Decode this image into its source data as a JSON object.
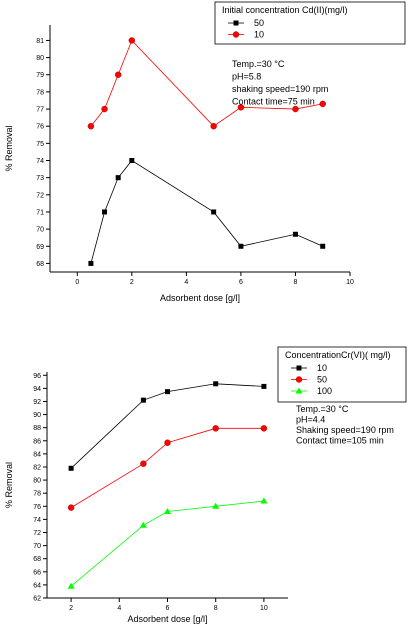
{
  "chart_data": [
    {
      "type": "line",
      "xlabel": "Adsorbent dose [g/l]",
      "ylabel": "% Removal",
      "xlim": [
        -1,
        10
      ],
      "ylim": [
        67.5,
        81.9
      ],
      "xticks": [
        0,
        2,
        4,
        6,
        8,
        10
      ],
      "yticks": [
        68,
        69,
        70,
        71,
        72,
        73,
        74,
        75,
        76,
        77,
        78,
        79,
        80,
        81
      ],
      "legend_title": "Initial concentration Cd(II)(mg/l)",
      "legend_position": "top-right",
      "annotations": [
        "Temp.=30 °C",
        "pH=5.8",
        "shaking speed=190 rpm",
        "Contact time=75 min"
      ],
      "series": [
        {
          "name": "50",
          "color": "#000000",
          "marker": "square",
          "x": [
            0.5,
            1,
            1.5,
            2,
            5,
            6,
            8,
            9
          ],
          "y": [
            68,
            71,
            73,
            74,
            71,
            69,
            69.7,
            69
          ]
        },
        {
          "name": "10",
          "color": "#ff0000",
          "marker": "circle",
          "x": [
            0.5,
            1,
            1.5,
            2,
            5,
            6,
            8,
            9
          ],
          "y": [
            76,
            77,
            79,
            81,
            76,
            77.1,
            77,
            77.3
          ]
        }
      ]
    },
    {
      "type": "line",
      "xlabel": "Adsorbent dose [g/l]",
      "ylabel": "% Removal",
      "xlim": [
        1,
        11
      ],
      "ylim": [
        62,
        96.5
      ],
      "xticks": [
        2,
        4,
        6,
        8,
        10
      ],
      "yticks": [
        62,
        64,
        66,
        68,
        70,
        72,
        74,
        76,
        78,
        80,
        82,
        84,
        86,
        88,
        90,
        92,
        94,
        96
      ],
      "legend_title": "ConcentrationCr(VI)( mg/l)",
      "legend_position": "top-right",
      "annotations": [
        "Temp.=30 °C",
        "pH=4.4",
        "Shaking speed=190 rpm",
        "Contact time=105 min"
      ],
      "series": [
        {
          "name": "10",
          "color": "#000000",
          "marker": "square",
          "x": [
            2,
            5,
            6,
            8,
            10
          ],
          "y": [
            81.8,
            92.2,
            93.5,
            94.7,
            94.3
          ]
        },
        {
          "name": "50",
          "color": "#ff0000",
          "marker": "circle",
          "x": [
            2,
            5,
            6,
            8,
            10
          ],
          "y": [
            75.8,
            82.5,
            85.7,
            87.9,
            87.9
          ]
        },
        {
          "name": "100",
          "color": "#00ff00",
          "marker": "triangle",
          "x": [
            2,
            5,
            6,
            8,
            10
          ],
          "y": [
            63.8,
            73.1,
            75.2,
            76,
            76.8
          ]
        }
      ]
    }
  ]
}
